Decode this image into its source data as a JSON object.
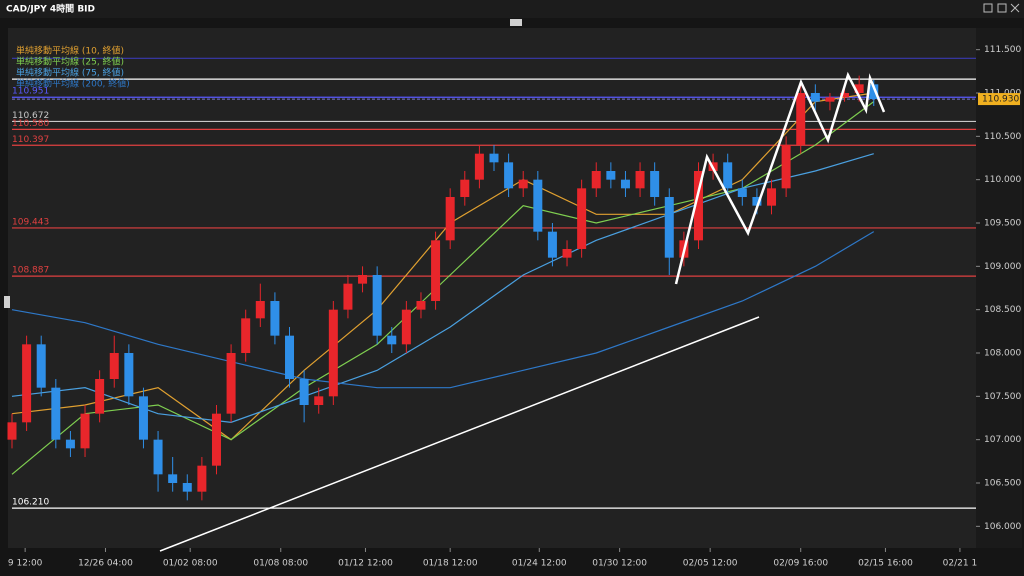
{
  "chart_data": {
    "type": "candlestick",
    "title": "CAD/JPY 4時間 BID",
    "xlim": [
      0,
      66
    ],
    "xticks": [
      {
        "value": 0.9,
        "label": "9 12:00"
      },
      {
        "value": 6.4,
        "label": "12/26 04:00"
      },
      {
        "value": 12.2,
        "label": "01/02 08:00"
      },
      {
        "value": 18.4,
        "label": "01/08 08:00"
      },
      {
        "value": 24.2,
        "label": "01/12 12:00"
      },
      {
        "value": 30,
        "label": "01/18 12:00"
      },
      {
        "value": 36.1,
        "label": "01/24 12:00"
      },
      {
        "value": 41.6,
        "label": "01/30 12:00"
      },
      {
        "value": 47.8,
        "label": "02/05 12:00"
      },
      {
        "value": 54,
        "label": "02/09 16:00"
      },
      {
        "value": 59.8,
        "label": "02/15 16:00"
      },
      {
        "value": 64.9,
        "label": "02/21 1"
      }
    ],
    "ylim": [
      105.75,
      111.75
    ],
    "yticks": [
      {
        "value": 106,
        "label": "106.000"
      },
      {
        "value": 106.5,
        "label": "106.500"
      },
      {
        "value": 107,
        "label": "107.000"
      },
      {
        "value": 107.5,
        "label": "107.500"
      },
      {
        "value": 108,
        "label": "108.000"
      },
      {
        "value": 108.5,
        "label": "108.500"
      },
      {
        "value": 109,
        "label": "109.000"
      },
      {
        "value": 109.5,
        "label": "109.500"
      },
      {
        "value": 110,
        "label": "110.000"
      },
      {
        "value": 110.5,
        "label": "110.500"
      },
      {
        "value": 111,
        "label": "111.000"
      },
      {
        "value": 111.5,
        "label": "111.500"
      }
    ],
    "up_color": "#e8262b",
    "down_color": "#2f8fe8",
    "ohlc": [
      [
        107.0,
        107.3,
        106.9,
        107.2
      ],
      [
        107.2,
        108.2,
        107.1,
        108.1
      ],
      [
        108.1,
        108.2,
        107.5,
        107.6
      ],
      [
        107.6,
        107.7,
        106.9,
        107.0
      ],
      [
        107.0,
        107.1,
        106.8,
        106.9
      ],
      [
        106.9,
        107.4,
        106.8,
        107.3
      ],
      [
        107.3,
        107.8,
        107.2,
        107.7
      ],
      [
        107.7,
        108.2,
        107.6,
        108.0
      ],
      [
        108.0,
        108.1,
        107.4,
        107.5
      ],
      [
        107.5,
        107.6,
        106.9,
        107.0
      ],
      [
        107.0,
        107.1,
        106.4,
        106.6
      ],
      [
        106.6,
        106.8,
        106.4,
        106.5
      ],
      [
        106.5,
        106.6,
        106.3,
        106.4
      ],
      [
        106.4,
        106.8,
        106.3,
        106.7
      ],
      [
        106.7,
        107.4,
        106.6,
        107.3
      ],
      [
        107.3,
        108.1,
        107.2,
        108.0
      ],
      [
        108.0,
        108.5,
        107.9,
        108.4
      ],
      [
        108.4,
        108.8,
        108.3,
        108.6
      ],
      [
        108.6,
        108.7,
        108.1,
        108.2
      ],
      [
        108.2,
        108.3,
        107.6,
        107.7
      ],
      [
        107.7,
        107.8,
        107.2,
        107.4
      ],
      [
        107.4,
        107.6,
        107.3,
        107.5
      ],
      [
        107.5,
        108.6,
        107.4,
        108.5
      ],
      [
        108.5,
        108.9,
        108.4,
        108.8
      ],
      [
        108.8,
        109.0,
        108.7,
        108.9
      ],
      [
        108.9,
        109.0,
        108.1,
        108.2
      ],
      [
        108.2,
        108.3,
        108.0,
        108.1
      ],
      [
        108.1,
        108.6,
        108.0,
        108.5
      ],
      [
        108.5,
        108.7,
        108.4,
        108.6
      ],
      [
        108.6,
        109.4,
        108.5,
        109.3
      ],
      [
        109.3,
        109.9,
        109.2,
        109.8
      ],
      [
        109.8,
        110.1,
        109.7,
        110.0
      ],
      [
        110.0,
        110.4,
        109.9,
        110.3
      ],
      [
        110.3,
        110.4,
        110.1,
        110.2
      ],
      [
        110.2,
        110.3,
        109.8,
        109.9
      ],
      [
        109.9,
        110.1,
        109.8,
        110.0
      ],
      [
        110.0,
        110.1,
        109.3,
        109.4
      ],
      [
        109.4,
        109.5,
        109.0,
        109.1
      ],
      [
        109.1,
        109.3,
        109.0,
        109.2
      ],
      [
        109.2,
        110.0,
        109.1,
        109.9
      ],
      [
        109.9,
        110.2,
        109.8,
        110.1
      ],
      [
        110.1,
        110.2,
        109.9,
        110.0
      ],
      [
        110.0,
        110.1,
        109.8,
        109.9
      ],
      [
        109.9,
        110.2,
        109.8,
        110.1
      ],
      [
        110.1,
        110.2,
        109.7,
        109.8
      ],
      [
        109.8,
        109.9,
        108.9,
        109.1
      ],
      [
        109.1,
        109.4,
        109.0,
        109.3
      ],
      [
        109.3,
        110.2,
        109.2,
        110.1
      ],
      [
        110.1,
        110.3,
        110.0,
        110.2
      ],
      [
        110.2,
        110.3,
        109.8,
        109.9
      ],
      [
        109.9,
        110.0,
        109.7,
        109.8
      ],
      [
        109.8,
        109.9,
        109.6,
        109.7
      ],
      [
        109.7,
        110.0,
        109.6,
        109.9
      ],
      [
        109.9,
        110.5,
        109.8,
        110.4
      ],
      [
        110.4,
        111.1,
        110.3,
        111.0
      ],
      [
        111.0,
        111.1,
        110.8,
        110.9
      ],
      [
        110.9,
        111.0,
        110.8,
        110.95
      ],
      [
        110.95,
        111.1,
        110.9,
        111.0
      ],
      [
        111.0,
        111.2,
        110.9,
        111.1
      ],
      [
        111.1,
        111.15,
        110.85,
        110.93
      ]
    ],
    "series": [
      {
        "name": "単純移動平均線 (10, 終値)",
        "color": "#e0a030",
        "x": [
          0,
          5,
          10,
          15,
          20,
          25,
          30,
          35,
          40,
          45,
          50,
          55,
          59
        ],
        "values": [
          107.3,
          107.4,
          107.6,
          107.0,
          107.8,
          108.5,
          109.5,
          110.0,
          109.6,
          109.6,
          110.0,
          110.9,
          111.0
        ]
      },
      {
        "name": "単純移動平均線 (25, 終値)",
        "color": "#7fcf50",
        "x": [
          0,
          5,
          10,
          15,
          20,
          25,
          30,
          35,
          40,
          45,
          50,
          55,
          59
        ],
        "values": [
          106.6,
          107.3,
          107.4,
          107.0,
          107.6,
          108.1,
          108.9,
          109.7,
          109.5,
          109.7,
          109.9,
          110.4,
          110.9
        ]
      },
      {
        "name": "単純移動平均線 (75, 終値)",
        "color": "#4aa0e0",
        "x": [
          0,
          5,
          10,
          15,
          20,
          25,
          30,
          35,
          40,
          45,
          50,
          55,
          59
        ],
        "values": [
          107.5,
          107.6,
          107.3,
          107.2,
          107.5,
          107.8,
          108.3,
          108.9,
          109.3,
          109.6,
          109.9,
          110.1,
          110.3
        ]
      },
      {
        "name": "単純移動平均線 (200, 終値)",
        "color": "#2e78c8",
        "x": [
          0,
          5,
          10,
          15,
          20,
          25,
          30,
          35,
          40,
          45,
          50,
          55,
          59
        ],
        "values": [
          108.5,
          108.35,
          108.1,
          107.9,
          107.7,
          107.6,
          107.6,
          107.8,
          108.0,
          108.3,
          108.6,
          109.0,
          109.4
        ]
      }
    ],
    "levels": [
      {
        "value": 111.4,
        "color": "#3a3ab0"
      },
      {
        "value": 111.16,
        "color": "#ffffff"
      },
      {
        "value": 110.951,
        "color": "#5a5aff",
        "label": "110.951"
      },
      {
        "value": 110.672,
        "color": "#c8c8c8",
        "label": "110.672"
      },
      {
        "value": 110.58,
        "color": "#e04040",
        "label": "110.580"
      },
      {
        "value": 110.397,
        "color": "#e04040",
        "label": "110.397"
      },
      {
        "value": 109.443,
        "color": "#e04040",
        "label": "109.443"
      },
      {
        "value": 108.887,
        "color": "#e04040",
        "label": "108.887"
      },
      {
        "value": 106.21,
        "color": "#ffffff",
        "label": "106.210"
      }
    ],
    "current_price": {
      "value": 110.93,
      "label": "110.930",
      "color": "#f0b020"
    }
  }
}
